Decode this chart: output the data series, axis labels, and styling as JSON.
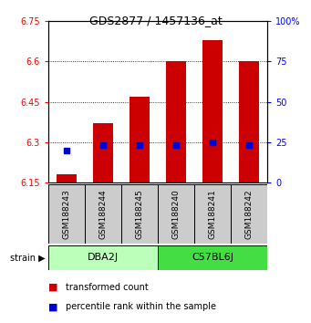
{
  "title": "GDS2877 / 1457136_at",
  "samples": [
    "GSM188243",
    "GSM188244",
    "GSM188245",
    "GSM188240",
    "GSM188241",
    "GSM188242"
  ],
  "red_values": [
    6.18,
    6.37,
    6.47,
    6.6,
    6.68,
    6.6
  ],
  "blue_values": [
    6.27,
    6.29,
    6.29,
    6.29,
    6.3,
    6.29
  ],
  "ylim": [
    6.15,
    6.75
  ],
  "yticks_left": [
    6.15,
    6.3,
    6.45,
    6.6,
    6.75
  ],
  "yticks_right_vals": [
    6.15,
    6.3,
    6.45,
    6.6,
    6.75
  ],
  "yticks_right_labels": [
    "0",
    "25",
    "50",
    "75",
    "100%"
  ],
  "group_dba_color": "#BBFFBB",
  "group_c57_color": "#44DD44",
  "group_dba_label": "DBA2J",
  "group_c57_label": "C57BL6J",
  "group_dba_indices": [
    0,
    1,
    2
  ],
  "group_c57_indices": [
    3,
    4,
    5
  ],
  "strain_label": "strain",
  "bar_color": "#CC0000",
  "dot_color": "#0000CC",
  "bar_width": 0.55,
  "sample_box_color": "#CCCCCC",
  "plot_bg": "#FFFFFF",
  "legend_red": "transformed count",
  "legend_blue": "percentile rank within the sample",
  "title_fontsize": 9,
  "tick_fontsize": 7,
  "sample_fontsize": 6.5,
  "legend_fontsize": 7
}
